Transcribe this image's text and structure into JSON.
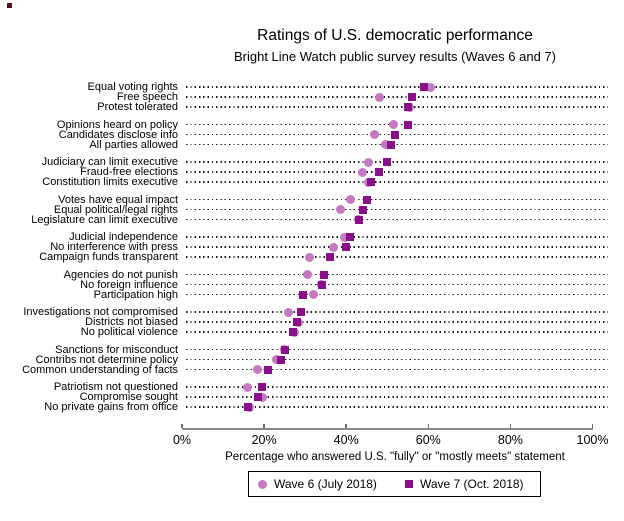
{
  "title": "Ratings of U.S. democratic performance",
  "subtitle": "Bright Line Watch public survey results (Waves 6 and 7)",
  "xlabel": "Percentage who answered U.S. \"fully\" or \"mostly meets\" statement",
  "axis": {
    "tick_labels": [
      "0%",
      "20%",
      "40%",
      "60%",
      "80%",
      "100%"
    ],
    "tick_values": [
      0,
      20,
      40,
      60,
      80,
      100
    ],
    "min": 0,
    "max": 100
  },
  "legend": [
    {
      "label": "Wave 6 (July 2018)",
      "marker": "circle",
      "color": "#c478c2"
    },
    {
      "label": "Wave 7 (Oct. 2018)",
      "marker": "square",
      "color": "#8b0f8b"
    }
  ],
  "chart_data": {
    "type": "scatter",
    "orientation": "horizontal-dot-plot",
    "grid": "dotted-leader-lines",
    "legend_position": "bottom",
    "xlim": [
      0,
      100
    ],
    "categories": [
      "Equal voting rights",
      "Free speech",
      "Protest tolerated",
      "Opinions heard on policy",
      "Candidates disclose info",
      "All parties allowed",
      "Judiciary can limit executive",
      "Fraud-free elections",
      "Constitution limits executive",
      "Votes have equal impact",
      "Equal political/legal rights",
      "Legislature can limit executive",
      "Judicial independence",
      "No interference with press",
      "Campaign funds transparent",
      "Agencies do not punish",
      "No foreign influence",
      "Participation high",
      "Investigations not compromised",
      "Districts not biased",
      "No political violence",
      "Sanctions for misconduct",
      "Contribs not determine policy",
      "Common understanding of facts",
      "Patriotism not questioned",
      "Compromise sought",
      "No private gains from office"
    ],
    "group_size": 3,
    "series": [
      {
        "name": "Wave 6 (July 2018)",
        "values": [
          60.5,
          48,
          55.5,
          51.5,
          47,
          49.5,
          45.5,
          44,
          45.5,
          41,
          38.5,
          43,
          39.5,
          37,
          31,
          30.5,
          34,
          32,
          26,
          28.5,
          27.5,
          25,
          23,
          18.5,
          16,
          19.5,
          16.5
        ]
      },
      {
        "name": "Wave 7 (Oct. 2018)",
        "values": [
          59,
          56,
          55,
          55,
          52,
          51,
          50,
          48,
          46,
          45,
          44,
          43,
          41,
          40,
          36,
          34.5,
          34,
          29.5,
          29,
          28,
          27,
          25,
          24,
          21,
          19.5,
          18.5,
          16
        ]
      }
    ]
  }
}
